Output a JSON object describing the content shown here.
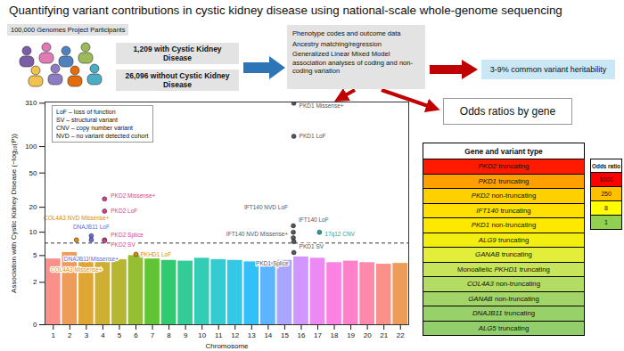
{
  "title": "Quantifying variant contributions in cystic kidney disease using national-scale whole-genome sequencing",
  "participants": {
    "label": "100,000 Genomes Project Participants",
    "cases": "1,209 with Cystic Kidney Disease",
    "controls": "26,096 without Cystic Kidney Disease"
  },
  "methods": [
    "Phenotype codes and outcome data",
    "Ancestry matching/regression",
    "Generalized Linear Mixed Model association analyses of coding and non-coding variation"
  ],
  "heritability": "3-9% common variant heritability",
  "odds_ratios_heading": "Odds ratios by gene",
  "table": {
    "header": "Gene and variant type",
    "rows": [
      {
        "gene": "PKD2",
        "variant": "truncating",
        "color": "#ff1a00"
      },
      {
        "gene": "PKD1",
        "variant": "truncating",
        "color": "#ffa000"
      },
      {
        "gene": "PKD2",
        "variant": "non-truncating",
        "color": "#ffd000"
      },
      {
        "gene": "IFT140",
        "variant": "truncating",
        "color": "#ffe000"
      },
      {
        "gene": "PKD1",
        "variant": "non-truncating",
        "color": "#ffe800"
      },
      {
        "gene": "ALG9",
        "variant": "truncating",
        "color": "#f2ef10"
      },
      {
        "gene": "GANAB",
        "variant": "truncating",
        "color": "#e2ee3a"
      },
      {
        "prefix": "Monoallelic",
        "gene": "PKHD1",
        "variant": "truncating",
        "color": "#c8e45a"
      },
      {
        "gene": "COL4A3",
        "variant": "non-truncating",
        "color": "#b2dc62"
      },
      {
        "gene": "GANAB",
        "variant": "non-truncating",
        "color": "#a2d468"
      },
      {
        "gene": "DNAJB11",
        "variant": "truncating",
        "color": "#98d06a"
      },
      {
        "gene": "ALG5",
        "variant": "truncating",
        "color": "#92cf6c"
      }
    ]
  },
  "odds_ratio_legend": {
    "title": "Odds ratio",
    "items": [
      {
        "value": 1000,
        "color": "#ff0000"
      },
      {
        "value": 250,
        "color": "#ffc000"
      },
      {
        "value": 8,
        "color": "#ffff00"
      },
      {
        "value": 1,
        "color": "#92d050"
      }
    ]
  },
  "chart_data": {
    "type": "scatter",
    "x_label": "Chromosome",
    "y_label": "Association with Cystic Kidney Disease (−log₁₀(P))",
    "abbreviations": [
      "LoF – loss of function",
      "SV – structural variant",
      "CNV – copy number variant",
      "NVD – no variant detected cohort"
    ],
    "x": [
      1,
      2,
      3,
      4,
      5,
      6,
      7,
      8,
      9,
      10,
      11,
      12,
      13,
      14,
      15,
      16,
      17,
      18,
      19,
      20,
      21,
      22
    ],
    "background_max": [
      4.5,
      5.5,
      4.8,
      4.6,
      4.4,
      5.0,
      4.5,
      4.3,
      4.2,
      4.6,
      4.4,
      4.3,
      4.1,
      4.0,
      4.3,
      4.8,
      4.6,
      4.0,
      4.2,
      4.0,
      3.8,
      3.9
    ],
    "colors": [
      "#F8766D",
      "#EA8331",
      "#D89000",
      "#C09B00",
      "#A3A500",
      "#7CAE00",
      "#39B600",
      "#00BB4E",
      "#00BF7D",
      "#00C1A3",
      "#00BFC4",
      "#00BAE0",
      "#00B0F6",
      "#35A2FF",
      "#9590FF",
      "#C77CFF",
      "#E76BF3",
      "#FA62DB",
      "#FF62BC",
      "#FF6A98",
      "#F8766D",
      "#EA8331"
    ],
    "threshold": 7.3,
    "variants": [
      {
        "label": "PKD1 Missense+",
        "x": 15.55,
        "value": 310,
        "color": "#555555"
      },
      {
        "label": "PKD1 LoF",
        "x": 15.55,
        "value": 131,
        "color": "#555555"
      },
      {
        "label": "PKD2 Missense+",
        "x": 4.1,
        "value": 25,
        "color": "#d43f8d"
      },
      {
        "label": "PKD2 LoF",
        "x": 4.1,
        "value": 18,
        "color": "#d43f8d"
      },
      {
        "label": "IFT140 NVD LoF",
        "x": 15.52,
        "value": 10,
        "color": "#555555"
      },
      {
        "label": "IFT140 LoF",
        "x": 15.52,
        "value": 12,
        "color": "#555555"
      },
      {
        "label": "IFT140 NVD Missense+",
        "x": 15.52,
        "value": 8.5,
        "color": "#555555"
      },
      {
        "label": "DNAJB11 LoF",
        "x": 3.3,
        "value": 9,
        "color": "#6a6ad6"
      },
      {
        "label": "COL4A3 NVD Missense+",
        "x": 2.4,
        "value": 8,
        "color": "#e08a00"
      },
      {
        "label": "DNAJB11 Missense+",
        "x": 3.3,
        "value": 8,
        "color": "#6a6ad6"
      },
      {
        "label": "PKD2 SV",
        "x": 4.1,
        "value": 8,
        "color": "#d43f8d"
      },
      {
        "label": "PKD2 Splice",
        "x": 4.1,
        "value": 7.8,
        "color": "#d43f8d"
      },
      {
        "label": "PKD1 SV",
        "x": 15.55,
        "value": 7.6,
        "color": "#555555"
      },
      {
        "label": "17q12 CNV",
        "x": 17.1,
        "value": 10,
        "color": "#2aa198"
      },
      {
        "label": "PKHD1 LoF",
        "x": 6.0,
        "value": 5.2,
        "color": "#e08a00"
      },
      {
        "label": "COL4A3 Missense+",
        "x": 2.4,
        "value": 4.5,
        "color": "#e08a00"
      },
      {
        "label": "PKD1 Splice",
        "x": 15.55,
        "value": 5.5,
        "color": "#555555"
      }
    ],
    "xlim": [
      0.5,
      22.5
    ],
    "xticks": [
      1,
      2,
      3,
      4,
      5,
      6,
      7,
      8,
      9,
      10,
      11,
      12,
      13,
      14,
      15,
      16,
      17,
      18,
      19,
      20,
      21,
      22
    ],
    "ylim": [
      0,
      320
    ],
    "yticks": [
      0,
      2,
      5,
      10,
      20,
      50,
      100,
      310
    ]
  }
}
